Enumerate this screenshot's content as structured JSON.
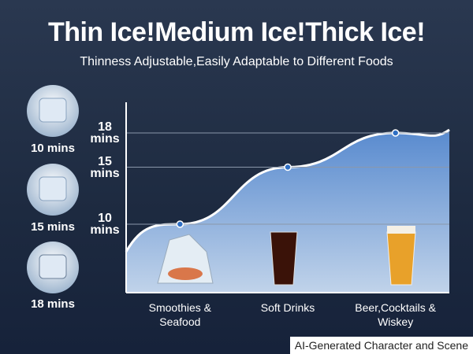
{
  "title": "Thin Ice!Medium Ice!Thick Ice!",
  "subtitle": "Thinness Adjustable,Easily Adaptable to Different Foods",
  "side_labels": [
    "10 mins",
    "15 mins",
    "18 mins"
  ],
  "footer": "AI-Generated Character and Scene",
  "chart_data": {
    "type": "area",
    "categories": [
      "Smoothies & Seafood",
      "Soft Drinks",
      "Beer,Cocktails & Wiskey"
    ],
    "values": [
      10,
      15,
      18
    ],
    "color": "#ffffff",
    "ylim": [
      4,
      20
    ],
    "yticks": [
      {
        "value": 10,
        "label": "10 mins"
      },
      {
        "value": 15,
        "label": "15 mins"
      },
      {
        "value": 18,
        "label": "18 mins"
      }
    ],
    "grid": true
  }
}
